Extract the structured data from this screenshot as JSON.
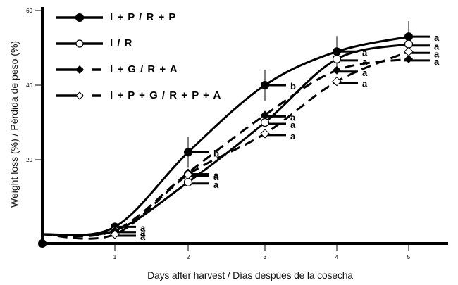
{
  "chart_data": {
    "type": "line",
    "title": "",
    "xlabel": "Days after harvest / Días despúes de la cosecha",
    "ylabel": "Weight loss (%) / Pérdida de peso (%)",
    "x": [
      0,
      1,
      2,
      3,
      4,
      5
    ],
    "x_ticks": [
      "1",
      "2",
      "3",
      "4",
      "5"
    ],
    "y_ticks": [
      "20",
      "40",
      "60"
    ],
    "xlim": [
      0,
      5.5
    ],
    "ylim": [
      -2,
      62
    ],
    "grid": false,
    "legend_position": "top-left",
    "series": [
      {
        "name": "I + P / R + P",
        "marker": "filled-circle",
        "line": "solid",
        "values": [
          0,
          2,
          22,
          40,
          49,
          53
        ],
        "letters": [
          "",
          "a",
          "b",
          "b",
          "a",
          "a"
        ]
      },
      {
        "name": "I / R",
        "marker": "open-circle",
        "line": "solid",
        "values": [
          0,
          1,
          14,
          30,
          47,
          51
        ],
        "letters": [
          "",
          "a",
          "a",
          "a",
          "a",
          "a"
        ]
      },
      {
        "name": "I + G / R + A",
        "marker": "filled-diamond",
        "line": "dashed",
        "values": [
          0,
          1,
          16.5,
          32,
          44,
          47
        ],
        "letters": [
          "",
          "a",
          "a",
          "a",
          "a",
          "a"
        ]
      },
      {
        "name": "I + P + G / R + P + A",
        "marker": "open-diamond",
        "line": "dashed",
        "values": [
          0,
          0,
          16,
          27,
          41,
          49
        ],
        "letters": [
          "",
          "a",
          "a",
          "a",
          "a",
          "a"
        ]
      }
    ]
  }
}
